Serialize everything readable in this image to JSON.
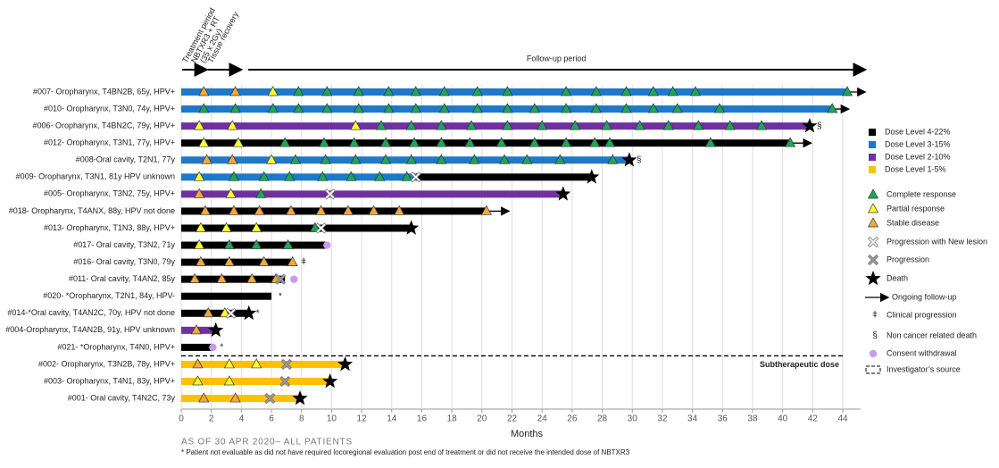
{
  "chart_data": {
    "type": "swimmer",
    "xlabel": "Months",
    "xlim": [
      0,
      44
    ],
    "xticks": [
      0,
      2,
      4,
      6,
      8,
      10,
      12,
      14,
      16,
      18,
      20,
      22,
      24,
      26,
      28,
      30,
      32,
      34,
      36,
      38,
      40,
      42,
      44
    ],
    "grid": true,
    "periods": [
      {
        "lines": [
          "Treatment period",
          "NBTXR3 + RT",
          "(35 x 2Gy)"
        ],
        "from": 0,
        "to": 1.7
      },
      {
        "lines": [
          "Tissue recovery"
        ],
        "from": 1.7,
        "to": 4.0
      },
      {
        "lines": [
          "Follow-up period"
        ],
        "from": 4.4,
        "to": 45.5
      }
    ],
    "series": [
      {
        "name": "Dose Level 4-22%",
        "color": "#000000"
      },
      {
        "name": "Dose Level 3-15%",
        "color": "#1f78c8"
      },
      {
        "name": "Dose Level 2-10%",
        "color": "#7030a0"
      },
      {
        "name": "Dose Level 1-5%",
        "color": "#ffc000"
      }
    ],
    "marker_colors": {
      "CR": "#1fa55a",
      "PR": "#ffff33",
      "SD": "#f2a93b",
      "PD": "#9a9a9a",
      "PNL": "#ffffff",
      "WD": "#c99bef"
    },
    "legend_markers": [
      {
        "kind": "CR",
        "label": "Complete response"
      },
      {
        "kind": "PR",
        "label": "Partial response"
      },
      {
        "kind": "SD",
        "label": "Stable disease"
      },
      {
        "kind": "PNL",
        "label": "Progression with New lesion"
      },
      {
        "kind": "PD",
        "label": "Progression"
      },
      {
        "kind": "death",
        "label": "Death"
      },
      {
        "kind": "ongoing",
        "label": "Ongoing follow-up"
      },
      {
        "kind": "symbol",
        "symbol": "ǂ",
        "label": "Clinical progression"
      },
      {
        "kind": "symbol",
        "symbol": "§",
        "label": "Non cancer related death"
      },
      {
        "kind": "WD",
        "label": "Consent withdrawal"
      },
      {
        "kind": "dashed",
        "label": "Investigator’s source"
      }
    ],
    "patients": [
      {
        "label": "#007- Oropharynx, T4BN2B, 65y, HPV+",
        "segments": [
          [
            1,
            44.3
          ]
        ],
        "ongoing": 45.5,
        "events": [
          [
            1.5,
            "SD"
          ],
          [
            3.6,
            "SD"
          ],
          [
            6.1,
            "PR"
          ],
          [
            7.8,
            "CR"
          ],
          [
            9.7,
            "CR"
          ],
          [
            11.8,
            "CR"
          ],
          [
            13.8,
            "CR"
          ],
          [
            15.6,
            "CR"
          ],
          [
            17.5,
            "CR"
          ],
          [
            19.7,
            "CR"
          ],
          [
            21.7,
            "CR"
          ],
          [
            25.6,
            "CR"
          ],
          [
            27.6,
            "CR"
          ],
          [
            29.6,
            "CR"
          ],
          [
            31.4,
            "CR"
          ],
          [
            32.7,
            "CR"
          ],
          [
            34.2,
            "CR"
          ],
          [
            44.3,
            "CR"
          ]
        ]
      },
      {
        "label": "#010- Oropharynx, T3N0, 74y, HPV+",
        "segments": [
          [
            1,
            43.3
          ]
        ],
        "ongoing": 44.4,
        "events": [
          [
            1.5,
            "CR"
          ],
          [
            3.6,
            "CR"
          ],
          [
            6.1,
            "CR"
          ],
          [
            7.8,
            "CR"
          ],
          [
            9.7,
            "CR"
          ],
          [
            11.8,
            "CR"
          ],
          [
            13.8,
            "CR"
          ],
          [
            15.6,
            "CR"
          ],
          [
            17.5,
            "CR"
          ],
          [
            19.7,
            "CR"
          ],
          [
            21.7,
            "CR"
          ],
          [
            23.5,
            "CR"
          ],
          [
            25.6,
            "CR"
          ],
          [
            27.6,
            "CR"
          ],
          [
            29.6,
            "CR"
          ],
          [
            31.4,
            "CR"
          ],
          [
            33.0,
            "CR"
          ],
          [
            35.8,
            "CR"
          ],
          [
            43.3,
            "CR"
          ]
        ]
      },
      {
        "label": "#006- Oropharynx, T4BN2C, 79y, HPV+",
        "segments": [
          [
            2,
            41.8
          ]
        ],
        "note": "§",
        "events": [
          [
            1.2,
            "PR"
          ],
          [
            3.4,
            "PR"
          ],
          [
            11.6,
            "PR"
          ],
          [
            13.3,
            "CR"
          ],
          [
            15.3,
            "CR"
          ],
          [
            17.3,
            "CR"
          ],
          [
            19.3,
            "CR"
          ],
          [
            21.7,
            "CR"
          ],
          [
            24.0,
            "CR"
          ],
          [
            26.2,
            "CR"
          ],
          [
            28.3,
            "CR"
          ],
          [
            30.5,
            "CR"
          ],
          [
            32.4,
            "CR"
          ],
          [
            34.4,
            "CR"
          ],
          [
            36.5,
            "CR"
          ],
          [
            38.6,
            "CR"
          ],
          [
            41.8,
            "death"
          ]
        ]
      },
      {
        "label": "#012- Oropharynx, T3N1, 77y, HPV+",
        "segments": [
          [
            0,
            40.5
          ]
        ],
        "ongoing": 41.9,
        "events": [
          [
            1.5,
            "PR"
          ],
          [
            3.8,
            "PR"
          ],
          [
            6.9,
            "CR"
          ],
          [
            9.5,
            "CR"
          ],
          [
            11.5,
            "CR"
          ],
          [
            13.6,
            "CR"
          ],
          [
            15.5,
            "CR"
          ],
          [
            17.3,
            "CR"
          ],
          [
            19.2,
            "CR"
          ],
          [
            21.3,
            "CR"
          ],
          [
            23.5,
            "CR"
          ],
          [
            25.6,
            "CR"
          ],
          [
            27.5,
            "CR"
          ],
          [
            28.5,
            "CR"
          ],
          [
            35.2,
            "CR"
          ],
          [
            40.5,
            "CR"
          ]
        ]
      },
      {
        "label": "#008-Oral cavity, T2N1, 77y",
        "segments": [
          [
            1,
            29.8
          ]
        ],
        "note": "§",
        "events": [
          [
            1.7,
            "SD"
          ],
          [
            3.4,
            "SD"
          ],
          [
            6.0,
            "PR"
          ],
          [
            7.6,
            "CR"
          ],
          [
            9.6,
            "CR"
          ],
          [
            11.6,
            "CR"
          ],
          [
            13.6,
            "CR"
          ],
          [
            15.3,
            "CR"
          ],
          [
            17.3,
            "CR"
          ],
          [
            19.5,
            "CR"
          ],
          [
            21.5,
            "CR"
          ],
          [
            23.0,
            "CR"
          ],
          [
            25.2,
            "CR"
          ],
          [
            28.7,
            "CR"
          ],
          [
            29.8,
            "death"
          ]
        ]
      },
      {
        "label": "#009- Oropharynx, T3N1, 81y HPV unknown",
        "segments": [
          [
            1,
            15.6
          ],
          [
            0,
            27.3
          ]
        ],
        "events": [
          [
            1.2,
            "PR"
          ],
          [
            3.5,
            "CR"
          ],
          [
            5.5,
            "CR"
          ],
          [
            7.2,
            "CR"
          ],
          [
            9.4,
            "CR"
          ],
          [
            11.3,
            "CR"
          ],
          [
            13.2,
            "CR"
          ],
          [
            15.0,
            "CR"
          ],
          [
            15.6,
            "PNL"
          ],
          [
            27.3,
            "death"
          ]
        ]
      },
      {
        "label": "#005- Oropharynx, T3N2, 75y, HPV+",
        "segments": [
          [
            2,
            25.4
          ]
        ],
        "events": [
          [
            1.2,
            "SD"
          ],
          [
            3.3,
            "PR"
          ],
          [
            5.3,
            "CR"
          ],
          [
            9.9,
            "PNL"
          ],
          [
            25.4,
            "death"
          ]
        ]
      },
      {
        "label": "#018- Oropharynx, T4ANX, 88y, HPV not done",
        "segments": [
          [
            0,
            20.3
          ]
        ],
        "ongoing": 21.8,
        "events": [
          [
            1.6,
            "SD"
          ],
          [
            3.5,
            "SD"
          ],
          [
            5.2,
            "SD"
          ],
          [
            7.3,
            "SD"
          ],
          [
            9.3,
            "SD"
          ],
          [
            11.1,
            "SD"
          ],
          [
            12.8,
            "SD"
          ],
          [
            14.5,
            "SD"
          ],
          [
            20.3,
            "SD"
          ]
        ]
      },
      {
        "label": "#013- Oropharynx, T1N3, 88y, HPV+",
        "segments": [
          [
            0,
            15.3
          ]
        ],
        "events": [
          [
            1.3,
            "PR"
          ],
          [
            3.0,
            "PR"
          ],
          [
            5.0,
            "PR"
          ],
          [
            8.9,
            "CR"
          ],
          [
            9.3,
            "PNL"
          ],
          [
            15.3,
            "death"
          ]
        ]
      },
      {
        "label": "#017- Oral cavity, T3N2, 71y",
        "segments": [
          [
            0,
            9.6
          ]
        ],
        "events": [
          [
            1.2,
            "PR"
          ],
          [
            3.2,
            "CR"
          ],
          [
            5.0,
            "CR"
          ],
          [
            7.1,
            "CR"
          ],
          [
            9.7,
            "WD"
          ]
        ]
      },
      {
        "label": "#016- Oral cavity, T3N0, 79y",
        "segments": [
          [
            0,
            7.5
          ]
        ],
        "note": "ǂ",
        "events": [
          [
            1.3,
            "SD"
          ],
          [
            3.2,
            "SD"
          ],
          [
            5.5,
            "SD"
          ],
          [
            7.4,
            "SD"
          ]
        ]
      },
      {
        "label": "#011- Oral cavity, T4AN2, 85y",
        "segments": [
          [
            0,
            6.9
          ]
        ],
        "events": [
          [
            0.9,
            "SD"
          ],
          [
            2.7,
            "SD"
          ],
          [
            4.7,
            "SD"
          ],
          [
            6.3,
            "SD"
          ],
          [
            6.6,
            "PD"
          ],
          [
            7.5,
            "WD"
          ]
        ]
      },
      {
        "label": "#020- *Oropharynx, T2N1, 84y, HPV-",
        "segments": [
          [
            0,
            6.0
          ]
        ],
        "note": "*",
        "events": []
      },
      {
        "label": "#014-*Oral cavity, T4AN2C, 70y, HPV not  done",
        "segments": [
          [
            0,
            4.5
          ]
        ],
        "note": "*",
        "events": [
          [
            1.8,
            "SD"
          ],
          [
            2.9,
            "PR"
          ],
          [
            3.3,
            "PNL"
          ],
          [
            4.5,
            "death"
          ]
        ]
      },
      {
        "label": "#004-Oropharynx, T4AN2B, 91y, HPV unknown",
        "segments": [
          [
            2,
            2.3
          ]
        ],
        "events": [
          [
            1.0,
            "SD"
          ],
          [
            2.3,
            "death"
          ]
        ]
      },
      {
        "label": "#021- *Oropharynx, T4N0, HPV+",
        "segments": [
          [
            0,
            2.1
          ]
        ],
        "note": "*",
        "events": [
          [
            2.1,
            "WD"
          ]
        ]
      },
      {
        "label": "#002- Oropharynx, T3N2B, 78y, HPV+",
        "segments": [
          [
            3,
            10.9
          ]
        ],
        "events": [
          [
            1.1,
            "SD"
          ],
          [
            3.2,
            "PR"
          ],
          [
            5.0,
            "PR"
          ],
          [
            7.0,
            "PD"
          ],
          [
            10.9,
            "death"
          ]
        ]
      },
      {
        "label": "#003- Oropharynx, T4N1, 83y, HPV+",
        "segments": [
          [
            3,
            9.9
          ]
        ],
        "events": [
          [
            1.1,
            "PR"
          ],
          [
            3.2,
            "PR"
          ],
          [
            6.9,
            "PD"
          ],
          [
            9.9,
            "death"
          ]
        ]
      },
      {
        "label": "#001- Oral cavity, T4N2C, 73y",
        "segments": [
          [
            3,
            7.9
          ]
        ],
        "events": [
          [
            1.5,
            "SD"
          ],
          [
            3.6,
            "SD"
          ],
          [
            5.9,
            "PD"
          ],
          [
            7.9,
            "death"
          ]
        ]
      }
    ],
    "subtherapeutic": {
      "label": "Subtherapeutic dose",
      "before_row": 16
    },
    "footnotes": [
      "AS OF 30 APR 2020– ALL PATIENTS",
      "* Patient not evaluable as did not have required locoregional evaluation post end of treatment or did not receive the intended dose of NBTXR3"
    ]
  }
}
